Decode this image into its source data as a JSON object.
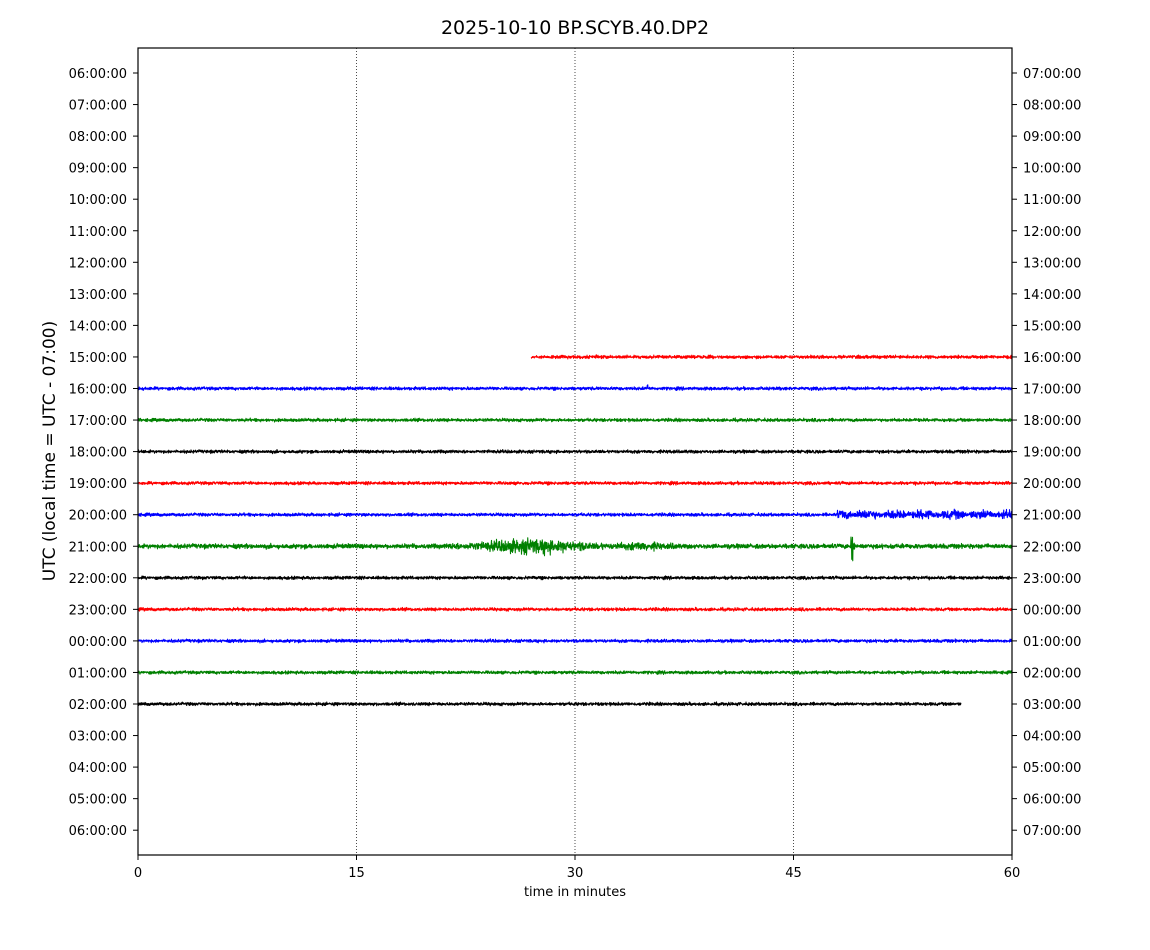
{
  "chart_data": {
    "type": "line",
    "title": "2025-10-10 BP.SCYB.40.DP2",
    "xlabel": "time in minutes",
    "ylabel": "UTC (local time = UTC - 07:00)",
    "xlim": [
      0,
      60
    ],
    "x_ticks": [
      0,
      15,
      30,
      45,
      60
    ],
    "grid": "vertical dotted lines at 15, 30, 45",
    "legend": "none",
    "left_tick_labels": [
      "06:00:00",
      "07:00:00",
      "08:00:00",
      "09:00:00",
      "10:00:00",
      "11:00:00",
      "12:00:00",
      "13:00:00",
      "14:00:00",
      "15:00:00",
      "16:00:00",
      "17:00:00",
      "18:00:00",
      "19:00:00",
      "20:00:00",
      "21:00:00",
      "22:00:00",
      "23:00:00",
      "00:00:00",
      "01:00:00",
      "02:00:00",
      "03:00:00",
      "04:00:00",
      "05:00:00",
      "06:00:00"
    ],
    "right_tick_labels": [
      "07:00:00",
      "08:00:00",
      "09:00:00",
      "10:00:00",
      "11:00:00",
      "12:00:00",
      "13:00:00",
      "14:00:00",
      "15:00:00",
      "16:00:00",
      "17:00:00",
      "18:00:00",
      "19:00:00",
      "20:00:00",
      "21:00:00",
      "22:00:00",
      "23:00:00",
      "00:00:00",
      "01:00:00",
      "02:00:00",
      "03:00:00",
      "04:00:00",
      "05:00:00",
      "06:00:00",
      "07:00:00"
    ],
    "colors": [
      "#ff0000",
      "#0000ff",
      "#008000",
      "#000000"
    ],
    "traces": [
      {
        "row": "15:00:00",
        "color": "#ff0000",
        "start_min": 27,
        "end_min": 60,
        "amplitude": "low",
        "events": []
      },
      {
        "row": "16:00:00",
        "color": "#0000ff",
        "start_min": 0,
        "end_min": 60,
        "amplitude": "low",
        "events": [
          {
            "at_min": 35,
            "size": "small spike"
          }
        ]
      },
      {
        "row": "17:00:00",
        "color": "#008000",
        "start_min": 0,
        "end_min": 60,
        "amplitude": "low",
        "events": []
      },
      {
        "row": "18:00:00",
        "color": "#000000",
        "start_min": 0,
        "end_min": 60,
        "amplitude": "low",
        "events": []
      },
      {
        "row": "19:00:00",
        "color": "#ff0000",
        "start_min": 0,
        "end_min": 60,
        "amplitude": "low",
        "events": []
      },
      {
        "row": "20:00:00",
        "color": "#0000ff",
        "start_min": 0,
        "end_min": 60,
        "amplitude": "low",
        "events": [
          {
            "from_min": 48,
            "to_min": 60,
            "size": "moderate burst"
          }
        ]
      },
      {
        "row": "21:00:00",
        "color": "#008000",
        "start_min": 0,
        "end_min": 60,
        "amplitude": "medium",
        "events": [
          {
            "from_min": 21,
            "to_min": 37,
            "size": "wave train peaking near 27"
          },
          {
            "at_min": 49,
            "size": "large spike"
          }
        ]
      },
      {
        "row": "22:00:00",
        "color": "#000000",
        "start_min": 0,
        "end_min": 60,
        "amplitude": "low",
        "events": []
      },
      {
        "row": "23:00:00",
        "color": "#ff0000",
        "start_min": 0,
        "end_min": 60,
        "amplitude": "low",
        "events": []
      },
      {
        "row": "00:00:00",
        "color": "#0000ff",
        "start_min": 0,
        "end_min": 60,
        "amplitude": "low",
        "events": []
      },
      {
        "row": "01:00:00",
        "color": "#008000",
        "start_min": 0,
        "end_min": 60,
        "amplitude": "low",
        "events": []
      },
      {
        "row": "02:00:00",
        "color": "#000000",
        "start_min": 0,
        "end_min": 56.5,
        "amplitude": "low",
        "events": []
      }
    ]
  }
}
